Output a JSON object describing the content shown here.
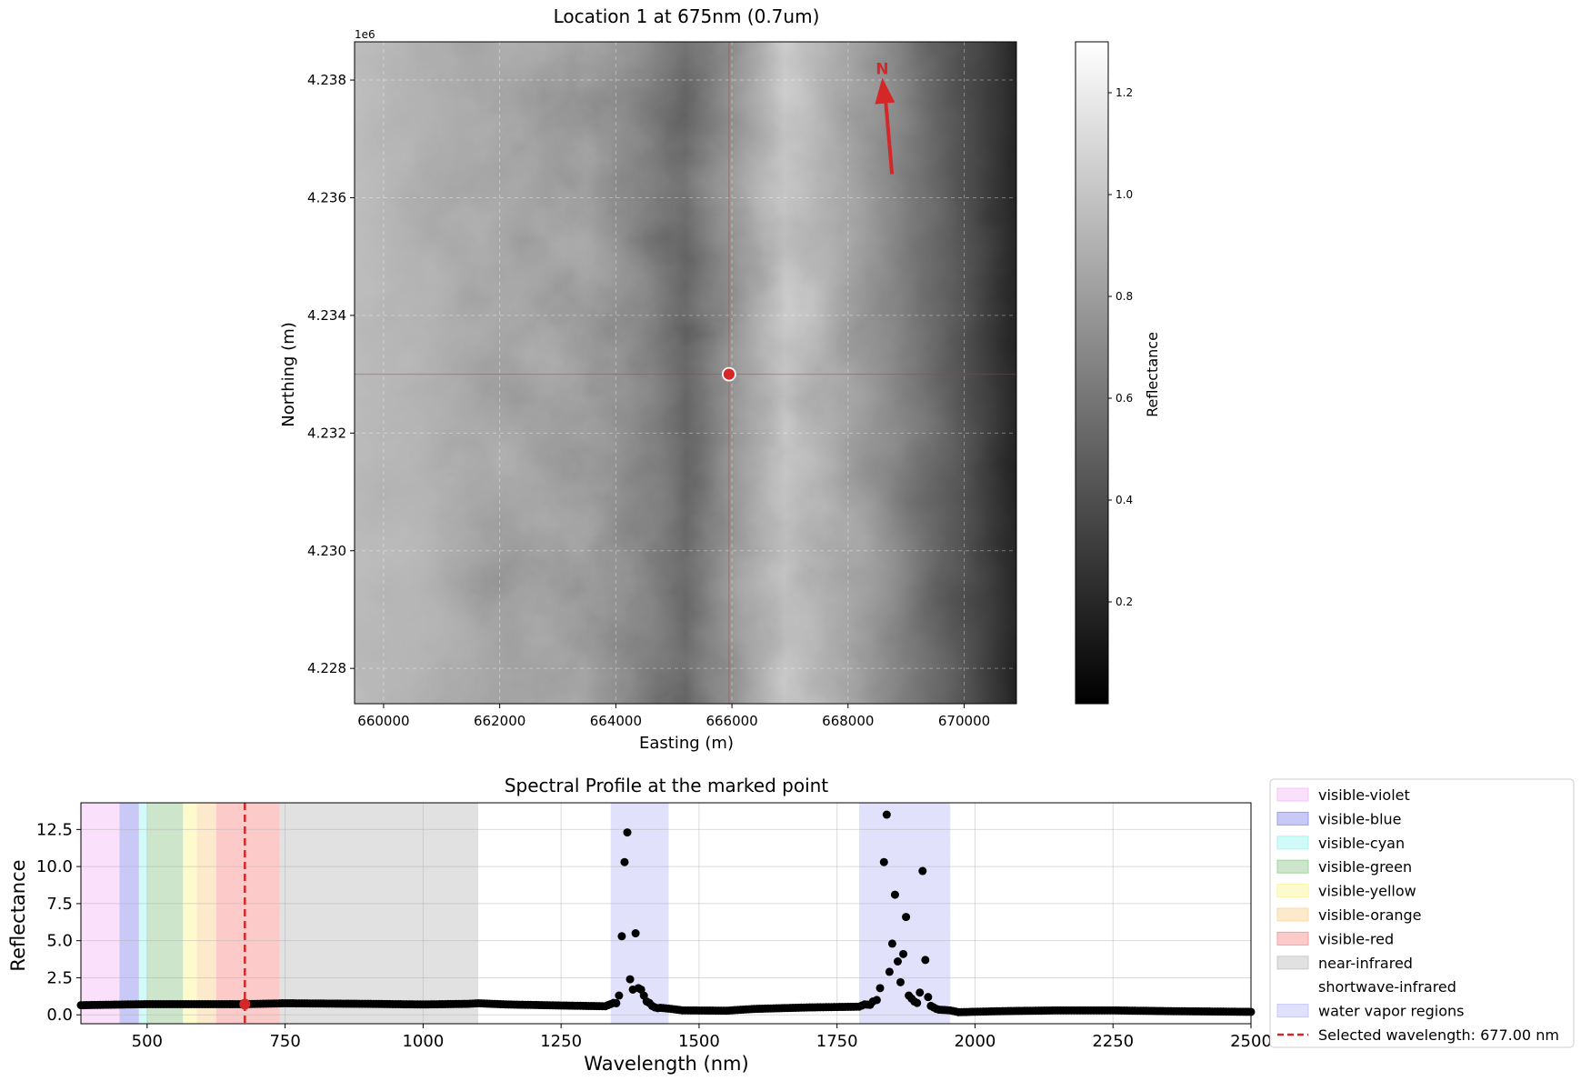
{
  "chart_data": [
    {
      "type": "heatmap",
      "title": "Location 1 at 675nm (0.7um)",
      "xlabel": "Easting (m)",
      "ylabel": "Northing (m)",
      "x_offset_label": "1e6",
      "xlim": [
        659500,
        670900
      ],
      "ylim": [
        4227400,
        4238650
      ],
      "xticks": [
        {
          "v": 660000,
          "label": "660000"
        },
        {
          "v": 662000,
          "label": "662000"
        },
        {
          "v": 664000,
          "label": "664000"
        },
        {
          "v": 666000,
          "label": "666000"
        },
        {
          "v": 668000,
          "label": "668000"
        },
        {
          "v": 670000,
          "label": "670000"
        }
      ],
      "yticks": [
        {
          "v": 4228000,
          "label": "4.228"
        },
        {
          "v": 4230000,
          "label": "4.230"
        },
        {
          "v": 4232000,
          "label": "4.232"
        },
        {
          "v": 4234000,
          "label": "4.234"
        },
        {
          "v": 4236000,
          "label": "4.236"
        },
        {
          "v": 4238000,
          "label": "4.238"
        }
      ],
      "grid": true,
      "marked_point": {
        "x": 665950,
        "y": 4233000
      },
      "north_arrow_label": "N",
      "colorbar": {
        "label": "Reflectance",
        "range": [
          0.0,
          1.3
        ],
        "ticks": [
          {
            "v": 0.2,
            "label": "0.2"
          },
          {
            "v": 0.4,
            "label": "0.4"
          },
          {
            "v": 0.6,
            "label": "0.6"
          },
          {
            "v": 0.8,
            "label": "0.8"
          },
          {
            "v": 1.0,
            "label": "1.0"
          },
          {
            "v": 1.2,
            "label": "1.2"
          }
        ]
      },
      "colors": {
        "marker": "#d62728",
        "arrow": "#d62728",
        "crosshair": "#d62728"
      }
    },
    {
      "type": "scatter",
      "title": "Spectral Profile at the marked point",
      "xlabel": "Wavelength (nm)",
      "ylabel": "Reflectance",
      "xlim": [
        380,
        2500
      ],
      "ylim": [
        -0.6,
        14.3
      ],
      "xticks": [
        {
          "v": 500,
          "label": "500"
        },
        {
          "v": 750,
          "label": "750"
        },
        {
          "v": 1000,
          "label": "1000"
        },
        {
          "v": 1250,
          "label": "1250"
        },
        {
          "v": 1500,
          "label": "1500"
        },
        {
          "v": 1750,
          "label": "1750"
        },
        {
          "v": 2000,
          "label": "2000"
        },
        {
          "v": 2250,
          "label": "2250"
        },
        {
          "v": 2500,
          "label": "2500"
        }
      ],
      "yticks": [
        {
          "v": 0.0,
          "label": "0.0"
        },
        {
          "v": 2.5,
          "label": "2.5"
        },
        {
          "v": 5.0,
          "label": "5.0"
        },
        {
          "v": 7.5,
          "label": "7.5"
        },
        {
          "v": 10.0,
          "label": "10.0"
        },
        {
          "v": 12.5,
          "label": "12.5"
        }
      ],
      "grid": true,
      "legend_position": "outside-right",
      "regions": [
        {
          "name": "visible-violet",
          "start": 380,
          "end": 450,
          "color": "#f5c6f5"
        },
        {
          "name": "visible-blue",
          "start": 450,
          "end": 485,
          "color": "#9c9cf2"
        },
        {
          "name": "visible-cyan",
          "start": 485,
          "end": 500,
          "color": "#a9f7f2"
        },
        {
          "name": "visible-green",
          "start": 500,
          "end": 565,
          "color": "#a4d1a1"
        },
        {
          "name": "visible-yellow",
          "start": 565,
          "end": 590,
          "color": "#fbf5a6"
        },
        {
          "name": "visible-orange",
          "start": 590,
          "end": 625,
          "color": "#fcd9a3"
        },
        {
          "name": "visible-red",
          "start": 625,
          "end": 740,
          "color": "#fc9e9e"
        },
        {
          "name": "near-infrared",
          "start": 740,
          "end": 1100,
          "color": "#c9c9c9"
        },
        {
          "name": "shortwave-infrared",
          "start": 1100,
          "end": 2500,
          "color": "#ffffff"
        },
        {
          "name": "water vapor regions",
          "ranges": [
            [
              1340,
              1445
            ],
            [
              1790,
              1955
            ]
          ],
          "color": "#c9c9f7"
        }
      ],
      "selected_wavelength": {
        "value": 677.0,
        "label": "Selected wavelength: 677.00 nm",
        "reflectance": 0.72,
        "color": "#d62728"
      },
      "baseline": [
        [
          380,
          0.65
        ],
        [
          500,
          0.72
        ],
        [
          677,
          0.72
        ],
        [
          750,
          0.78
        ],
        [
          900,
          0.74
        ],
        [
          1000,
          0.7
        ],
        [
          1080,
          0.74
        ],
        [
          1100,
          0.78
        ],
        [
          1150,
          0.7
        ],
        [
          1250,
          0.63
        ],
        [
          1330,
          0.58
        ],
        [
          1345,
          0.8
        ],
        [
          1450,
          0.4
        ],
        [
          1470,
          0.3
        ],
        [
          1550,
          0.28
        ],
        [
          1600,
          0.4
        ],
        [
          1700,
          0.5
        ],
        [
          1790,
          0.55
        ],
        [
          1800,
          0.7
        ],
        [
          1955,
          0.3
        ],
        [
          1970,
          0.18
        ],
        [
          2050,
          0.25
        ],
        [
          2150,
          0.3
        ],
        [
          2250,
          0.3
        ],
        [
          2350,
          0.25
        ],
        [
          2500,
          0.2
        ]
      ],
      "spikes": [
        {
          "x": 1355,
          "y": 1.3
        },
        {
          "x": 1360,
          "y": 5.3
        },
        {
          "x": 1365,
          "y": 10.3
        },
        {
          "x": 1370,
          "y": 12.3
        },
        {
          "x": 1375,
          "y": 2.4
        },
        {
          "x": 1380,
          "y": 1.7
        },
        {
          "x": 1385,
          "y": 5.5
        },
        {
          "x": 1390,
          "y": 1.8
        },
        {
          "x": 1395,
          "y": 1.7
        },
        {
          "x": 1400,
          "y": 1.3
        },
        {
          "x": 1405,
          "y": 0.9
        },
        {
          "x": 1410,
          "y": 0.8
        },
        {
          "x": 1415,
          "y": 0.6
        },
        {
          "x": 1420,
          "y": 0.5
        },
        {
          "x": 1425,
          "y": 0.45
        },
        {
          "x": 1815,
          "y": 0.9
        },
        {
          "x": 1822,
          "y": 1.0
        },
        {
          "x": 1828,
          "y": 1.8
        },
        {
          "x": 1835,
          "y": 10.3
        },
        {
          "x": 1840,
          "y": 13.5
        },
        {
          "x": 1845,
          "y": 2.9
        },
        {
          "x": 1850,
          "y": 4.8
        },
        {
          "x": 1855,
          "y": 8.1
        },
        {
          "x": 1860,
          "y": 3.6
        },
        {
          "x": 1865,
          "y": 2.2
        },
        {
          "x": 1870,
          "y": 4.1
        },
        {
          "x": 1875,
          "y": 6.6
        },
        {
          "x": 1880,
          "y": 1.3
        },
        {
          "x": 1885,
          "y": 1.1
        },
        {
          "x": 1890,
          "y": 0.9
        },
        {
          "x": 1895,
          "y": 0.8
        },
        {
          "x": 1900,
          "y": 1.5
        },
        {
          "x": 1905,
          "y": 9.7
        },
        {
          "x": 1910,
          "y": 3.7
        },
        {
          "x": 1915,
          "y": 1.2
        },
        {
          "x": 1920,
          "y": 0.6
        },
        {
          "x": 1925,
          "y": 0.5
        },
        {
          "x": 1930,
          "y": 0.4
        },
        {
          "x": 1935,
          "y": 0.35
        }
      ]
    }
  ]
}
